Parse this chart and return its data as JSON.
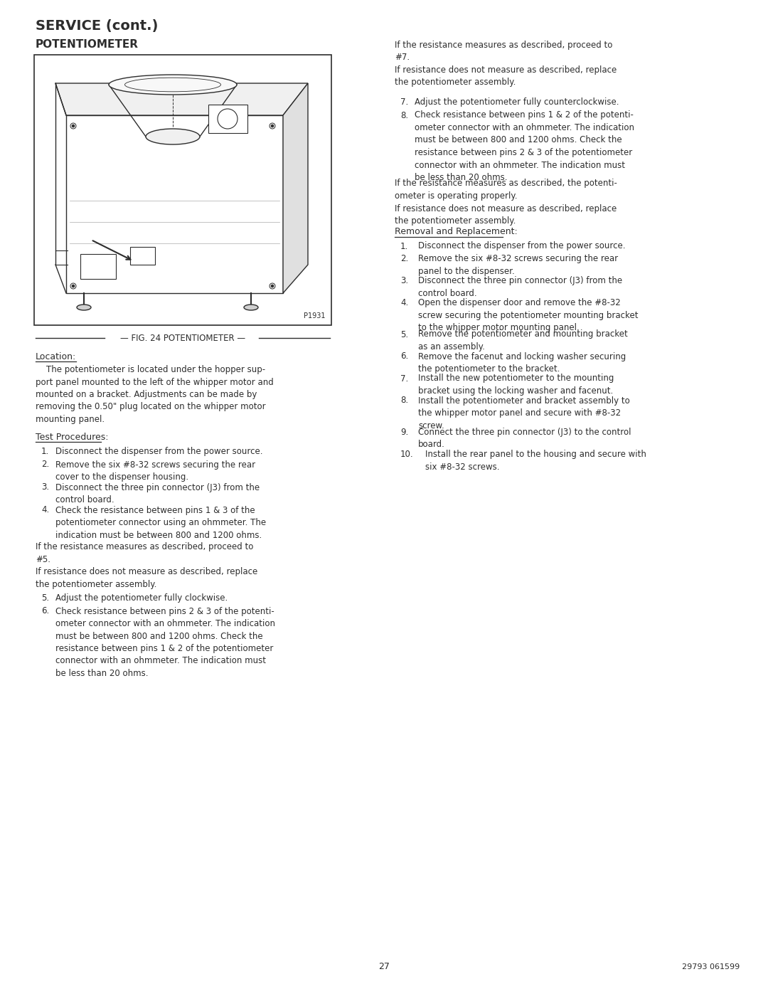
{
  "title1": "SERVICE (cont.)",
  "title2": "POTENTIOMETER",
  "fig_caption": "— FIG. 24 POTENTIOMETER —",
  "fig_label": "P1931",
  "location_heading": "Location:",
  "test_heading": "Test Procedures:",
  "removal_heading": "Removal and Replacement:",
  "page_number": "27",
  "doc_number": "29793 061599",
  "text_color": "#2d2d2d",
  "bg_color": "#ffffff",
  "font_size_body": 8.5,
  "font_size_heading": 11.0,
  "font_size_title": 14.0,
  "left_test_items": [
    [
      "1.",
      "Disconnect the dispenser from the power source."
    ],
    [
      "2.",
      "Remove the six #8-32 screws securing the rear\ncover to the dispenser housing."
    ],
    [
      "3.",
      "Disconnect the three pin connector (J3) from the\ncontrol board."
    ],
    [
      "4.",
      "Check the resistance between pins 1 & 3 of the\npotentiometer connector using an ohmmeter. The\nindication must be between 800 and 1200 ohms."
    ]
  ],
  "left_mid_text": "If the resistance measures as described, proceed to\n#5.\nIf resistance does not measure as described, replace\nthe potentiometer assembly.",
  "left_test_items2": [
    [
      "5.",
      "Adjust the potentiometer fully clockwise."
    ],
    [
      "6.",
      "Check resistance between pins 2 & 3 of the potenti-\nometer connector with an ohmmeter. The indication\nmust be between 800 and 1200 ohms. Check the\nresistance between pins 1 & 2 of the potentiometer\nconnector with an ohmmeter. The indication must\nbe less than 20 ohms."
    ]
  ],
  "right_top_text": "If the resistance measures as described, proceed to\n#7.\nIf resistance does not measure as described, replace\nthe potentiometer assembly.",
  "right_items": [
    [
      "7.",
      "Adjust the potentiometer fully counterclockwise."
    ],
    [
      "8.",
      "Check resistance between pins 1 & 2 of the potenti-\nometer connector with an ohmmeter. The indication\nmust be between 800 and 1200 ohms. Check the\nresistance between pins 2 & 3 of the potentiometer\nconnector with an ohmmeter. The indication must\nbe less than 20 ohms."
    ]
  ],
  "right_mid_text": "If the resistance measures as described, the potenti-\nometer is operating properly.\nIf resistance does not measure as described, replace\nthe potentiometer assembly.",
  "removal_items": [
    [
      "1.",
      "Disconnect the dispenser from the power source."
    ],
    [
      "2.",
      "Remove the six #8-32 screws securing the rear\npanel to the dispenser."
    ],
    [
      "3.",
      "Disconnect the three pin connector (J3) from the\ncontrol board."
    ],
    [
      "4.",
      "Open the dispenser door and remove the #8-32\nscrew securing the potentiometer mounting bracket\nto the whipper motor mounting panel."
    ],
    [
      "5.",
      "Remove the potentiometer and mounting bracket\nas an assembly."
    ],
    [
      "6.",
      "Remove the facenut and locking washer securing\nthe potentiometer to the bracket."
    ],
    [
      "7.",
      "Install the new potentiometer to the mounting\nbracket using the locking washer and facenut."
    ],
    [
      "8.",
      "Install the potentiometer and bracket assembly to\nthe whipper motor panel and secure with #8-32\nscrew."
    ],
    [
      "9.",
      "Connect the three pin connector (J3) to the control\nboard."
    ],
    [
      "10.",
      "Install the rear panel to the housing and secure with\nsix #8-32 screws."
    ]
  ]
}
